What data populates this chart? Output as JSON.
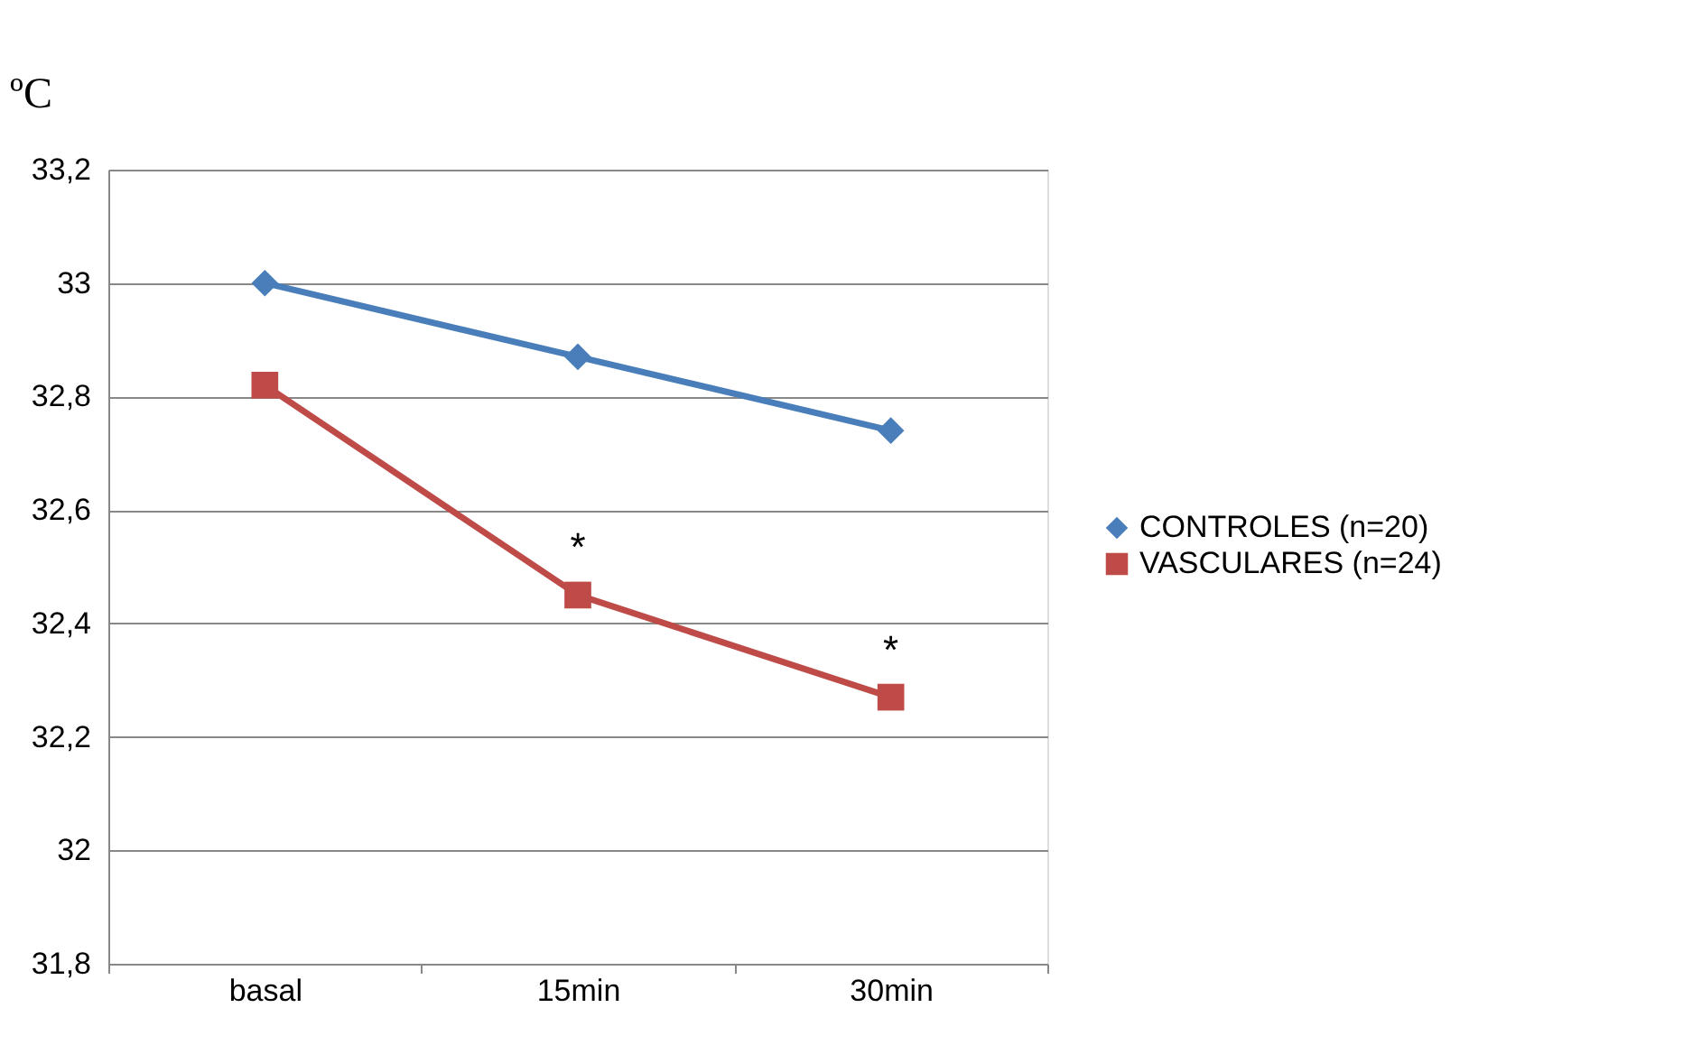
{
  "chart_data": {
    "type": "line",
    "ylabel": "ºC",
    "categories": [
      "basal",
      "15min",
      "30min"
    ],
    "series": [
      {
        "name": "CONTROLES (n=20)",
        "color": "#4a7ebb",
        "marker": "diamond",
        "values": [
          33.0,
          32.87,
          32.74
        ]
      },
      {
        "name": "VASCULARES (n=24)",
        "color": "#be4b48",
        "marker": "square",
        "values": [
          32.82,
          32.45,
          32.27
        ]
      }
    ],
    "ylim": [
      31.8,
      33.2
    ],
    "yticks": [
      {
        "value": 31.8,
        "label": "31,8"
      },
      {
        "value": 32,
        "label": "32"
      },
      {
        "value": 32.2,
        "label": "32,2"
      },
      {
        "value": 32.4,
        "label": "32,4"
      },
      {
        "value": 32.6,
        "label": "32,6"
      },
      {
        "value": 32.8,
        "label": "32,8"
      },
      {
        "value": 33,
        "label": "33"
      },
      {
        "value": 33.2,
        "label": "33,2"
      }
    ],
    "grid": "y",
    "legend": "right",
    "line_style": "solid",
    "annotations": [
      {
        "text": "*",
        "x": "15min",
        "y": 32.45
      },
      {
        "text": "*",
        "x": "30min",
        "y": 32.27
      }
    ]
  }
}
